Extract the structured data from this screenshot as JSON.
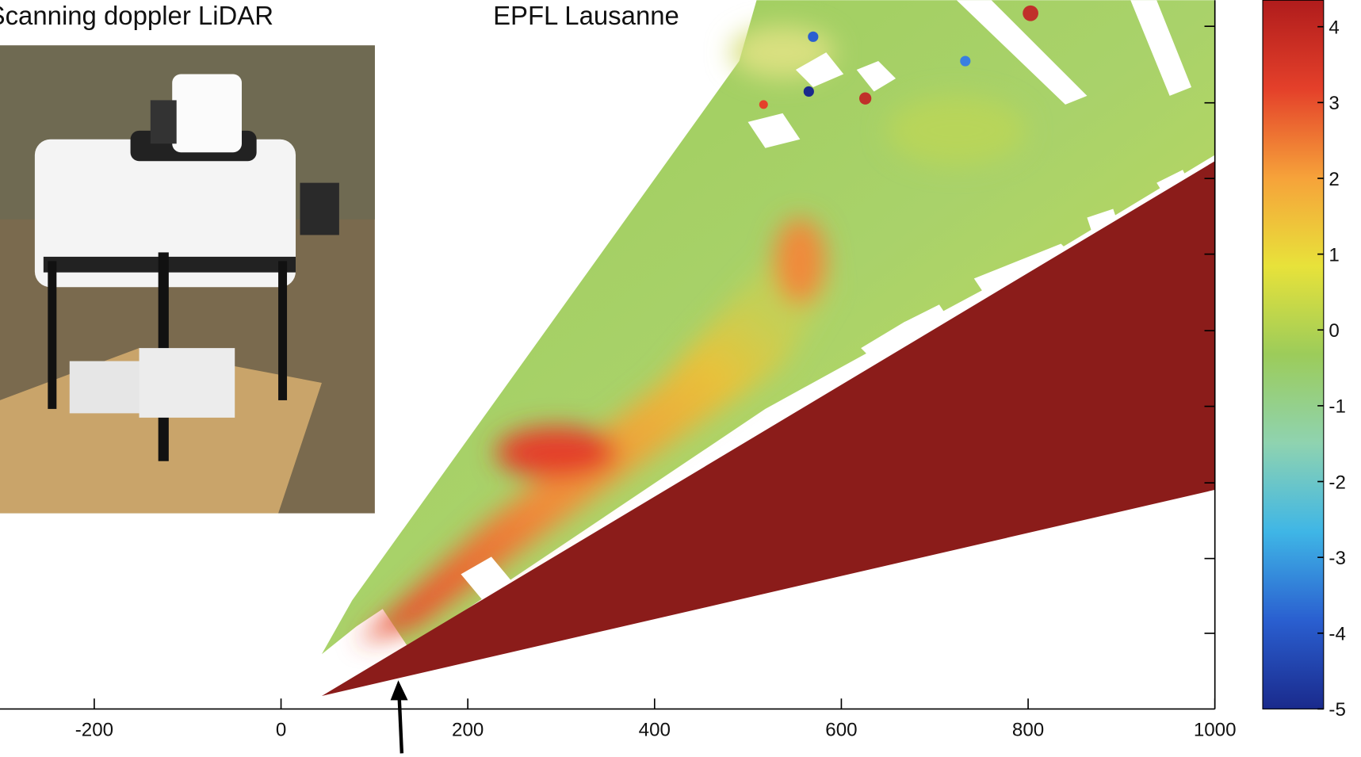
{
  "chart_data": {
    "type": "heatmap",
    "title": "Scanning doppler LiDAR",
    "subtitle": "EPFL Lausanne",
    "xlim": [
      -300,
      1000
    ],
    "xticks": [
      -200,
      0,
      200,
      400,
      600,
      800,
      1000
    ],
    "colorbar": {
      "lim": [
        -5,
        4.35
      ],
      "ticks": [
        4,
        3,
        2,
        1,
        0,
        -1,
        -2,
        -3,
        -4,
        -5
      ],
      "colors": [
        "#1a2a8c",
        "#2a5fd0",
        "#3fb6e6",
        "#8fd3b0",
        "#9ccc5a",
        "#e8e23a",
        "#f6a23a",
        "#e4402a",
        "#b01c1c"
      ]
    },
    "masked_color": "#8b1c1a"
  }
}
